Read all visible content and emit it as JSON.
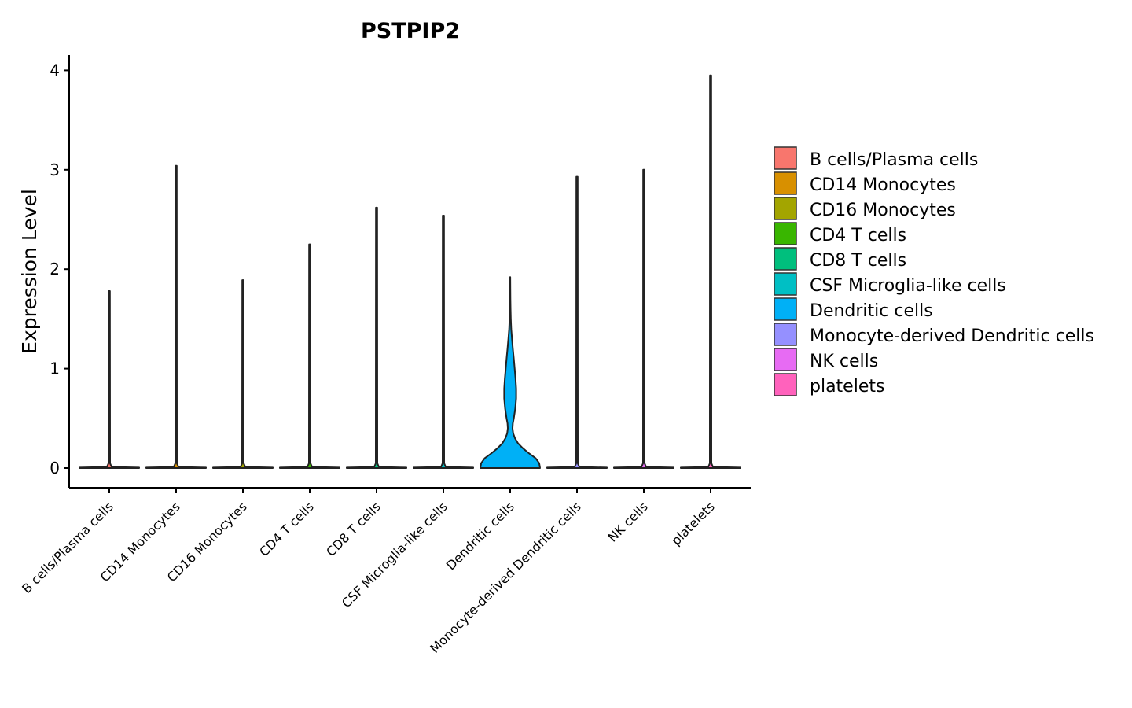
{
  "chart_data": {
    "type": "violin",
    "title": "PSTPIP2",
    "xlabel": "",
    "ylabel": "Expression Level",
    "ylim": [
      0,
      4.2
    ],
    "yticks": [
      0,
      1,
      2,
      3,
      4
    ],
    "grid": false,
    "legend_position": "right",
    "categories": [
      {
        "name": "B cells/Plasma cells",
        "color": "#F8766D",
        "max": 1.78
      },
      {
        "name": "CD14 Monocytes",
        "color": "#D89000",
        "max": 3.04
      },
      {
        "name": "CD16 Monocytes",
        "color": "#A3A500",
        "max": 1.89
      },
      {
        "name": "CD4 T cells",
        "color": "#39B600",
        "max": 2.25
      },
      {
        "name": "CD8 T cells",
        "color": "#00BF7D",
        "max": 2.62
      },
      {
        "name": "CSF Microglia-like cells",
        "color": "#00BFC4",
        "max": 2.54
      },
      {
        "name": "Dendritic cells",
        "color": "#00B0F6",
        "max": 1.92
      },
      {
        "name": "Monocyte-derived Dendritic cells",
        "color": "#9590FF",
        "max": 2.93
      },
      {
        "name": "NK cells",
        "color": "#E76BF3",
        "max": 3.0
      },
      {
        "name": "platelets",
        "color": "#FF62BC",
        "max": 3.95
      }
    ],
    "dendritic_density_profile": [
      [
        0.0,
        1.0
      ],
      [
        0.05,
        0.97
      ],
      [
        0.1,
        0.85
      ],
      [
        0.15,
        0.62
      ],
      [
        0.2,
        0.42
      ],
      [
        0.25,
        0.26
      ],
      [
        0.3,
        0.16
      ],
      [
        0.35,
        0.1
      ],
      [
        0.4,
        0.08
      ],
      [
        0.45,
        0.09
      ],
      [
        0.5,
        0.12
      ],
      [
        0.6,
        0.17
      ],
      [
        0.7,
        0.2
      ],
      [
        0.8,
        0.2
      ],
      [
        0.9,
        0.18
      ],
      [
        1.0,
        0.15
      ],
      [
        1.1,
        0.12
      ],
      [
        1.2,
        0.09
      ],
      [
        1.3,
        0.06
      ],
      [
        1.4,
        0.035
      ],
      [
        1.5,
        0.02
      ],
      [
        1.6,
        0.012
      ],
      [
        1.7,
        0.008
      ],
      [
        1.8,
        0.005
      ],
      [
        1.92,
        0.003
      ]
    ]
  }
}
